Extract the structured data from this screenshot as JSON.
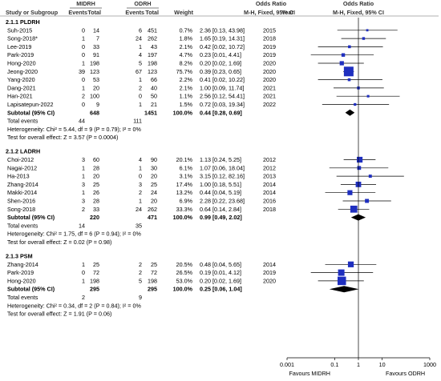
{
  "header": {
    "group1": "MIDRH",
    "group2": "ODRH",
    "odds_ratio": "Odds Ratio",
    "odds_ratio_plot": "Odds Ratio",
    "col_study": "Study or Subgroup",
    "col_events1": "Events",
    "col_total1": "Total",
    "col_events2": "Events",
    "col_total2": "Total",
    "col_weight": "Weight",
    "col_method": "M-H, Fixed, 95% CI",
    "col_year": "Year",
    "col_method_plot": "M-H, Fixed, 95% CI"
  },
  "axis": {
    "ticks": [
      "0.001",
      "0.1",
      "1",
      "10",
      "1000"
    ],
    "favours_left": "Favours MIDRH",
    "favours_right": "Favours ODRH"
  },
  "chart_data": {
    "type": "forest",
    "scale": "log",
    "xlim": [
      0.001,
      1000
    ],
    "reference_line": 1,
    "subgroups": [
      {
        "title": "2.1.1 PLDRH",
        "studies": [
          {
            "name": "Suh-2015",
            "e1": "0",
            "t1": "14",
            "e2": "6",
            "t2": "451",
            "weight": "0.7%",
            "ci_text": "2.36 [0.13, 43.98]",
            "year": "2015",
            "or": 2.36,
            "lo": 0.13,
            "hi": 43.98,
            "w": 0.7
          },
          {
            "name": "Song-2018*",
            "e1": "1",
            "t1": "7",
            "e2": "24",
            "t2": "262",
            "weight": "1.8%",
            "ci_text": "1.65 [0.19, 14.31]",
            "year": "2018",
            "or": 1.65,
            "lo": 0.19,
            "hi": 14.31,
            "w": 1.8
          },
          {
            "name": "Lee-2019",
            "e1": "0",
            "t1": "33",
            "e2": "1",
            "t2": "43",
            "weight": "2.1%",
            "ci_text": "0.42 [0.02, 10.72]",
            "year": "2019",
            "or": 0.42,
            "lo": 0.02,
            "hi": 10.72,
            "w": 2.1
          },
          {
            "name": "Park-2019",
            "e1": "0",
            "t1": "91",
            "e2": "4",
            "t2": "197",
            "weight": "4.7%",
            "ci_text": "0.23 [0.01, 4.41]",
            "year": "2019",
            "or": 0.23,
            "lo": 0.01,
            "hi": 4.41,
            "w": 4.7
          },
          {
            "name": "Hong-2020",
            "e1": "1",
            "t1": "198",
            "e2": "5",
            "t2": "198",
            "weight": "8.2%",
            "ci_text": "0.20 [0.02, 1.69]",
            "year": "2020",
            "or": 0.2,
            "lo": 0.02,
            "hi": 1.69,
            "w": 8.2
          },
          {
            "name": "Jeong-2020",
            "e1": "39",
            "t1": "123",
            "e2": "67",
            "t2": "123",
            "weight": "75.7%",
            "ci_text": "0.39 [0.23, 0.65]",
            "year": "2020",
            "or": 0.39,
            "lo": 0.23,
            "hi": 0.65,
            "w": 75.7
          },
          {
            "name": "Yang-2020",
            "e1": "0",
            "t1": "53",
            "e2": "1",
            "t2": "66",
            "weight": "2.2%",
            "ci_text": "0.41 [0.02, 10.22]",
            "year": "2020",
            "or": 0.41,
            "lo": 0.02,
            "hi": 10.22,
            "w": 2.2
          },
          {
            "name": "Dang-2021",
            "e1": "1",
            "t1": "20",
            "e2": "2",
            "t2": "40",
            "weight": "2.1%",
            "ci_text": "1.00 [0.09, 11.74]",
            "year": "2021",
            "or": 1.0,
            "lo": 0.09,
            "hi": 11.74,
            "w": 2.1
          },
          {
            "name": "Han-2021",
            "e1": "2",
            "t1": "100",
            "e2": "0",
            "t2": "50",
            "weight": "1.1%",
            "ci_text": "2.56 [0.12, 54.41]",
            "year": "2021",
            "or": 2.56,
            "lo": 0.12,
            "hi": 54.41,
            "w": 1.1
          },
          {
            "name": "Lapisatepun-2022",
            "e1": "0",
            "t1": "9",
            "e2": "1",
            "t2": "21",
            "weight": "1.5%",
            "ci_text": "0.72 [0.03, 19.34]",
            "year": "2022",
            "or": 0.72,
            "lo": 0.03,
            "hi": 19.34,
            "w": 1.5
          }
        ],
        "subtotal": {
          "label": "Subtotal (95% CI)",
          "t1": "648",
          "t2": "1451",
          "weight": "100.0%",
          "ci_text": "0.44 [0.28, 0.69]",
          "or": 0.44,
          "lo": 0.28,
          "hi": 0.69
        },
        "total_events": {
          "label": "Total events",
          "e1": "44",
          "e2": "111"
        },
        "heterogeneity": "Heterogeneity: Chi² = 5.44, df = 9 (P = 0.79); I² = 0%",
        "overall_effect": "Test for overall effect: Z = 3.57 (P = 0.0004)"
      },
      {
        "title": "2.1.2 LADRH",
        "studies": [
          {
            "name": "Choi-2012",
            "e1": "3",
            "t1": "60",
            "e2": "4",
            "t2": "90",
            "weight": "20.1%",
            "ci_text": "1.13 [0.24, 5.25]",
            "year": "2012",
            "or": 1.13,
            "lo": 0.24,
            "hi": 5.25,
            "w": 20.1
          },
          {
            "name": "Nagai-2012",
            "e1": "1",
            "t1": "28",
            "e2": "1",
            "t2": "30",
            "weight": "6.1%",
            "ci_text": "1.07 [0.06, 18.04]",
            "year": "2012",
            "or": 1.07,
            "lo": 0.06,
            "hi": 18.04,
            "w": 6.1
          },
          {
            "name": "Ha-2013",
            "e1": "1",
            "t1": "20",
            "e2": "0",
            "t2": "20",
            "weight": "3.1%",
            "ci_text": "3.15 [0.12, 82.16]",
            "year": "2013",
            "or": 3.15,
            "lo": 0.12,
            "hi": 82.16,
            "w": 3.1
          },
          {
            "name": "Zhang-2014",
            "e1": "3",
            "t1": "25",
            "e2": "3",
            "t2": "25",
            "weight": "17.4%",
            "ci_text": "1.00 [0.18, 5.51]",
            "year": "2014",
            "or": 1.0,
            "lo": 0.18,
            "hi": 5.51,
            "w": 17.4
          },
          {
            "name": "Makki-2014",
            "e1": "1",
            "t1": "26",
            "e2": "2",
            "t2": "24",
            "weight": "13.2%",
            "ci_text": "0.44 [0.04, 5.19]",
            "year": "2014",
            "or": 0.44,
            "lo": 0.04,
            "hi": 5.19,
            "w": 13.2
          },
          {
            "name": "Shen-2016",
            "e1": "3",
            "t1": "28",
            "e2": "1",
            "t2": "20",
            "weight": "6.9%",
            "ci_text": "2.28 [0.22, 23.68]",
            "year": "2016",
            "or": 2.28,
            "lo": 0.22,
            "hi": 23.68,
            "w": 6.9
          },
          {
            "name": "Song-2018",
            "e1": "2",
            "t1": "33",
            "e2": "24",
            "t2": "262",
            "weight": "33.3%",
            "ci_text": "0.64 [0.14, 2.84]",
            "year": "2018",
            "or": 0.64,
            "lo": 0.14,
            "hi": 2.84,
            "w": 33.3
          }
        ],
        "subtotal": {
          "label": "Subtotal (95% CI)",
          "t1": "220",
          "t2": "471",
          "weight": "100.0%",
          "ci_text": "0.99 [0.49, 2.02]",
          "or": 0.99,
          "lo": 0.49,
          "hi": 2.02
        },
        "total_events": {
          "label": "Total events",
          "e1": "14",
          "e2": "35"
        },
        "heterogeneity": "Heterogeneity: Chi² = 1.75, df = 6 (P = 0.94); I² = 0%",
        "overall_effect": "Test for overall effect: Z = 0.02 (P = 0.98)"
      },
      {
        "title": "2.1.3 PSM",
        "studies": [
          {
            "name": "Zhang-2014",
            "e1": "1",
            "t1": "25",
            "e2": "2",
            "t2": "25",
            "weight": "20.5%",
            "ci_text": "0.48 [0.04, 5.65]",
            "year": "2014",
            "or": 0.48,
            "lo": 0.04,
            "hi": 5.65,
            "w": 20.5
          },
          {
            "name": "Park-2019",
            "e1": "0",
            "t1": "72",
            "e2": "2",
            "t2": "72",
            "weight": "26.5%",
            "ci_text": "0.19 [0.01, 4.12]",
            "year": "2019",
            "or": 0.19,
            "lo": 0.01,
            "hi": 4.12,
            "w": 26.5
          },
          {
            "name": "Hong-2020",
            "e1": "1",
            "t1": "198",
            "e2": "5",
            "t2": "198",
            "weight": "53.0%",
            "ci_text": "0.20 [0.02, 1.69]",
            "year": "2020",
            "or": 0.2,
            "lo": 0.02,
            "hi": 1.69,
            "w": 53.0
          }
        ],
        "subtotal": {
          "label": "Subtotal (95% CI)",
          "t1": "295",
          "t2": "295",
          "weight": "100.0%",
          "ci_text": "0.25 [0.06, 1.04]",
          "or": 0.25,
          "lo": 0.06,
          "hi": 1.04
        },
        "total_events": {
          "label": "Total events",
          "e1": "2",
          "e2": "9"
        },
        "heterogeneity": "Heterogeneity: Chi² = 0.34, df = 2 (P = 0.84); I² = 0%",
        "overall_effect": "Test for overall effect: Z = 1.91 (P = 0.06)"
      }
    ]
  },
  "colors": {
    "marker": "#1f2fbf",
    "ink": "#000000",
    "rule": "#666666"
  }
}
